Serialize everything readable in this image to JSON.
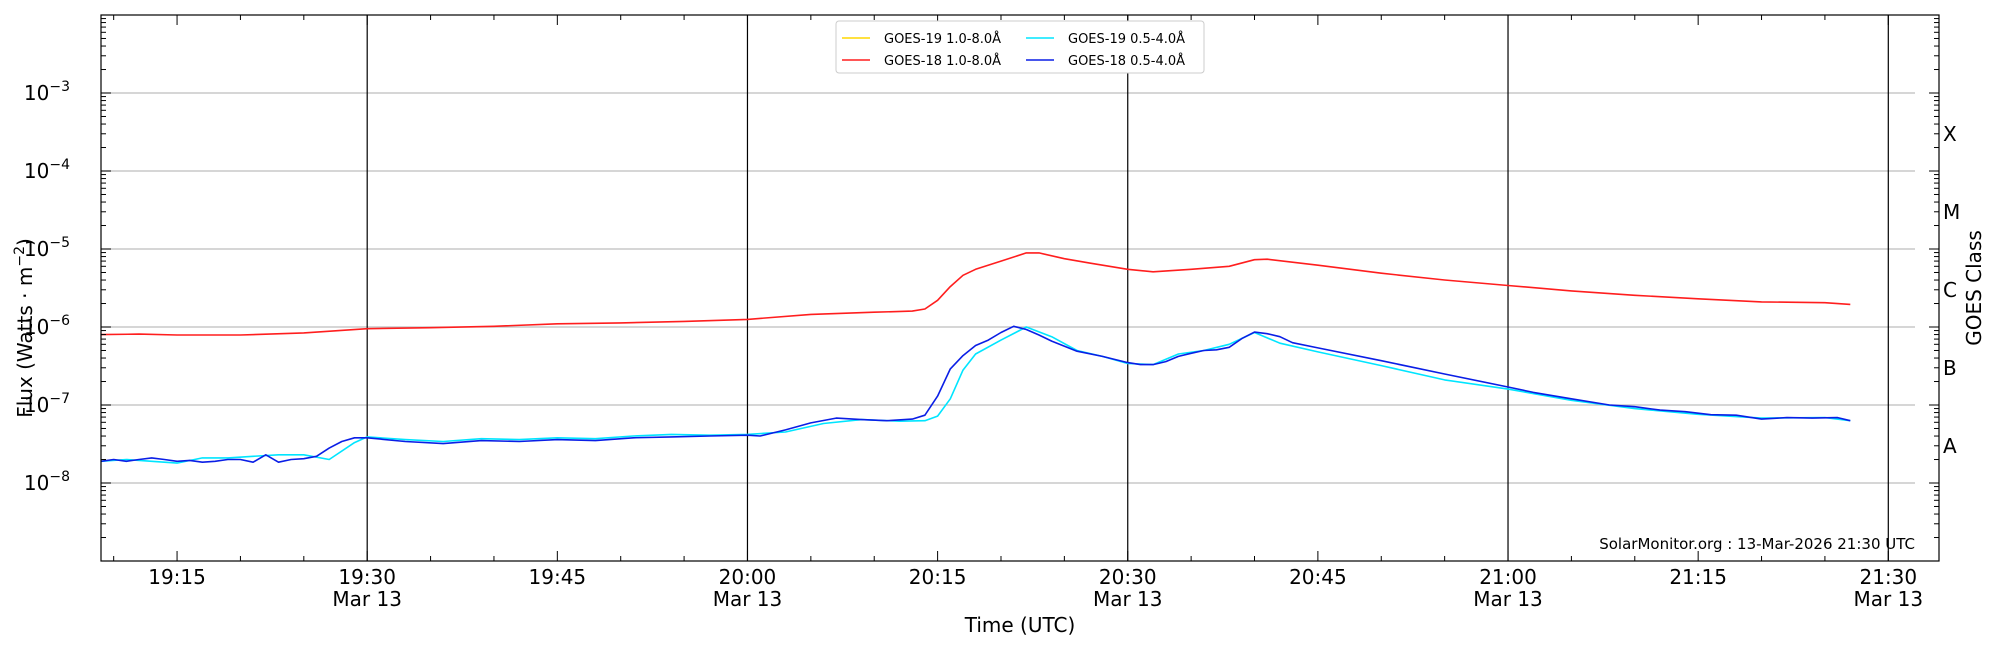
{
  "chart_data": {
    "type": "line",
    "x_scale": "time",
    "y_scale": "log",
    "xlabel": "Time (UTC)",
    "ylabel": "Flux (Watts · m",
    "ylabel_sup": "−2",
    "ylabel_close": ")",
    "y2label": "GOES Class",
    "xlim": [
      "19:09",
      "21:34"
    ],
    "ylim": [
      1e-09,
      0.01
    ],
    "grid": "horizontal",
    "legend_position": "top-center",
    "credit": "SolarMonitor.org : 13-Mar-2026 21:30 UTC",
    "y_ticks": [
      {
        "value": 1e-08,
        "base": "10",
        "exp": "−8"
      },
      {
        "value": 1e-07,
        "base": "10",
        "exp": "−7"
      },
      {
        "value": 1e-06,
        "base": "10",
        "exp": "−6"
      },
      {
        "value": 1e-05,
        "base": "10",
        "exp": "−5"
      },
      {
        "value": 0.0001,
        "base": "10",
        "exp": "−4"
      },
      {
        "value": 0.001,
        "base": "10",
        "exp": "−3"
      }
    ],
    "x_ticks": [
      {
        "time": "19:15",
        "date": ""
      },
      {
        "time": "19:30",
        "date": "Mar 13"
      },
      {
        "time": "19:45",
        "date": ""
      },
      {
        "time": "20:00",
        "date": "Mar 13"
      },
      {
        "time": "20:15",
        "date": ""
      },
      {
        "time": "20:30",
        "date": "Mar 13"
      },
      {
        "time": "20:45",
        "date": ""
      },
      {
        "time": "21:00",
        "date": "Mar 13"
      },
      {
        "time": "21:15",
        "date": ""
      },
      {
        "time": "21:30",
        "date": "Mar 13"
      }
    ],
    "vertical_lines": [
      "19:30",
      "20:00",
      "20:30",
      "21:00",
      "21:30"
    ],
    "goes_classes": [
      {
        "label": "A",
        "value": 3e-08
      },
      {
        "label": "B",
        "value": 3e-07
      },
      {
        "label": "C",
        "value": 3e-06
      },
      {
        "label": "M",
        "value": 3e-05
      },
      {
        "label": "X",
        "value": 0.0003
      }
    ],
    "series": [
      {
        "name": "GOES-19 1.0-8.0",
        "color": "#ffd700",
        "x": [],
        "y": []
      },
      {
        "name": "GOES-19 0.5-4.0",
        "color": "#00e5ff",
        "x": [
          "19:09",
          "19:11",
          "19:13",
          "19:15",
          "19:17",
          "19:19",
          "19:21",
          "19:23",
          "19:25",
          "19:27",
          "19:29",
          "19:30",
          "19:33",
          "19:36",
          "19:39",
          "19:42",
          "19:45",
          "19:48",
          "19:51",
          "19:54",
          "19:57",
          "20:00",
          "20:03",
          "20:06",
          "20:09",
          "20:12",
          "20:14",
          "20:15",
          "20:16",
          "20:17",
          "20:18",
          "20:20",
          "20:22",
          "20:24",
          "20:26",
          "20:28",
          "20:30",
          "20:32",
          "20:34",
          "20:36",
          "20:38",
          "20:40",
          "20:42",
          "20:45",
          "20:50",
          "20:55",
          "21:00",
          "21:05",
          "21:10",
          "21:15",
          "21:20",
          "21:25",
          "21:27"
        ],
        "y": [
          1.9e-08,
          2e-08,
          1.9e-08,
          1.8e-08,
          2.1e-08,
          2.1e-08,
          2.2e-08,
          2.3e-08,
          2.3e-08,
          2e-08,
          3.3e-08,
          3.9e-08,
          3.6e-08,
          3.4e-08,
          3.7e-08,
          3.6e-08,
          3.8e-08,
          3.7e-08,
          4e-08,
          4.2e-08,
          4.1e-08,
          4.2e-08,
          4.5e-08,
          5.8e-08,
          6.5e-08,
          6.2e-08,
          6.3e-08,
          7.2e-08,
          1.2e-07,
          2.8e-07,
          4.5e-07,
          6.8e-07,
          1e-06,
          7.5e-07,
          5e-07,
          4.2e-07,
          3.4e-07,
          3.3e-07,
          4.5e-07,
          5e-07,
          6e-07,
          8.5e-07,
          6.2e-07,
          4.8e-07,
          3.2e-07,
          2.1e-07,
          1.6e-07,
          1.15e-07,
          9e-08,
          7.6e-08,
          6.8e-08,
          6.9e-08,
          6.3e-08
        ]
      },
      {
        "name": "GOES-18 1.0-8.0",
        "color": "#ff1e1e",
        "x": [
          "19:09",
          "19:12",
          "19:15",
          "19:20",
          "19:25",
          "19:30",
          "19:35",
          "19:40",
          "19:45",
          "19:50",
          "19:55",
          "20:00",
          "20:05",
          "20:10",
          "20:13",
          "20:14",
          "20:15",
          "20:16",
          "20:17",
          "20:18",
          "20:20",
          "20:22",
          "20:23",
          "20:25",
          "20:27",
          "20:30",
          "20:32",
          "20:35",
          "20:38",
          "20:40",
          "20:41",
          "20:45",
          "20:50",
          "20:55",
          "21:00",
          "21:05",
          "21:10",
          "21:15",
          "21:20",
          "21:25",
          "21:27"
        ],
        "y": [
          8e-07,
          8.1e-07,
          7.9e-07,
          7.9e-07,
          8.4e-07,
          9.5e-07,
          9.8e-07,
          1.02e-06,
          1.1e-06,
          1.13e-06,
          1.18e-06,
          1.25e-06,
          1.45e-06,
          1.55e-06,
          1.6e-06,
          1.7e-06,
          2.2e-06,
          3.3e-06,
          4.6e-06,
          5.5e-06,
          7e-06,
          8.9e-06,
          8.9e-06,
          7.5e-06,
          6.6e-06,
          5.5e-06,
          5.1e-06,
          5.5e-06,
          6e-06,
          7.3e-06,
          7.4e-06,
          6.2e-06,
          4.9e-06,
          4e-06,
          3.4e-06,
          2.9e-06,
          2.55e-06,
          2.3e-06,
          2.1e-06,
          2.05e-06,
          1.95e-06
        ]
      },
      {
        "name": "GOES-18 0.5-4.0",
        "color": "#0a1ee6",
        "x": [
          "19:09",
          "19:10",
          "19:11",
          "19:12",
          "19:13",
          "19:14",
          "19:15",
          "19:16",
          "19:17",
          "19:18",
          "19:19",
          "19:20",
          "19:21",
          "19:22",
          "19:23",
          "19:24",
          "19:25",
          "19:26",
          "19:27",
          "19:28",
          "19:29",
          "19:30",
          "19:33",
          "19:36",
          "19:39",
          "19:42",
          "19:45",
          "19:48",
          "19:51",
          "19:54",
          "19:57",
          "20:00",
          "20:01",
          "20:03",
          "20:05",
          "20:07",
          "20:09",
          "20:11",
          "20:13",
          "20:14",
          "20:15",
          "20:16",
          "20:17",
          "20:18",
          "20:19",
          "20:20",
          "20:21",
          "20:22",
          "20:23",
          "20:24",
          "20:26",
          "20:28",
          "20:30",
          "20:31",
          "20:32",
          "20:33",
          "20:34",
          "20:35",
          "20:36",
          "20:37",
          "20:38",
          "20:39",
          "20:40",
          "20:41",
          "20:42",
          "20:43",
          "20:45",
          "20:50",
          "20:55",
          "21:00",
          "21:02",
          "21:05",
          "21:08",
          "21:10",
          "21:12",
          "21:14",
          "21:16",
          "21:18",
          "21:20",
          "21:22",
          "21:24",
          "21:26",
          "21:27"
        ],
        "y": [
          1.9e-08,
          2e-08,
          1.9e-08,
          2e-08,
          2.1e-08,
          2e-08,
          1.9e-08,
          1.95e-08,
          1.85e-08,
          1.9e-08,
          2e-08,
          2e-08,
          1.85e-08,
          2.3e-08,
          1.85e-08,
          2e-08,
          2.05e-08,
          2.2e-08,
          2.8e-08,
          3.4e-08,
          3.8e-08,
          3.8e-08,
          3.4e-08,
          3.2e-08,
          3.5e-08,
          3.4e-08,
          3.6e-08,
          3.5e-08,
          3.8e-08,
          3.9e-08,
          4e-08,
          4.1e-08,
          4e-08,
          4.8e-08,
          5.9e-08,
          6.8e-08,
          6.5e-08,
          6.3e-08,
          6.6e-08,
          7.4e-08,
          1.3e-07,
          2.9e-07,
          4.3e-07,
          5.8e-07,
          6.8e-07,
          8.5e-07,
          1.02e-06,
          9.3e-07,
          7.9e-07,
          6.6e-07,
          4.9e-07,
          4.2e-07,
          3.5e-07,
          3.3e-07,
          3.3e-07,
          3.6e-07,
          4.2e-07,
          4.6e-07,
          5e-07,
          5.1e-07,
          5.5e-07,
          7.1e-07,
          8.6e-07,
          8.2e-07,
          7.5e-07,
          6.3e-07,
          5.4e-07,
          3.7e-07,
          2.5e-07,
          1.7e-07,
          1.45e-07,
          1.2e-07,
          1e-07,
          9.5e-08,
          8.6e-08,
          8.2e-08,
          7.5e-08,
          7.4e-08,
          6.6e-08,
          6.9e-08,
          6.8e-08,
          6.9e-08,
          6.3e-08
        ]
      }
    ]
  },
  "legend_unit": "Å"
}
